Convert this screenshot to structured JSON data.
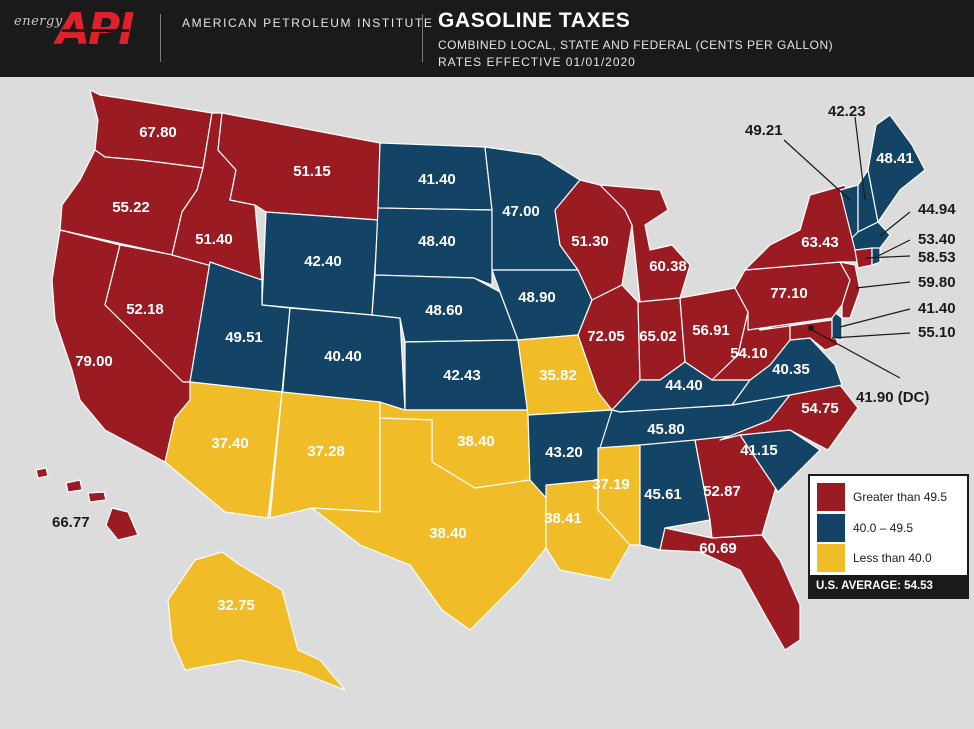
{
  "header": {
    "logo_prefix": "energy",
    "logo_mark": "API",
    "organization": "AMERICAN PETROLEUM INSTITUTE",
    "title": "GASOLINE TAXES",
    "subtitle": "COMBINED LOCAL, STATE AND FEDERAL (CENTS PER GALLON)",
    "effective": "RATES EFFECTIVE 01/01/2020"
  },
  "colors": {
    "high": "#9b1b22",
    "mid": "#134466",
    "low": "#f0bc27",
    "background": "#dcdcdc",
    "header": "#1b1a1a"
  },
  "states": {
    "WA": "67.80",
    "OR": "55.22",
    "CA": "79.00",
    "NV": "52.18",
    "ID": "51.40",
    "MT": "51.15",
    "WY": "42.40",
    "UT": "49.51",
    "AZ": "37.40",
    "CO": "40.40",
    "NM": "37.28",
    "ND": "41.40",
    "SD": "48.40",
    "NE": "48.60",
    "KS": "42.43",
    "OK": "38.40",
    "TX": "38.40",
    "MN": "47.00",
    "IA": "48.90",
    "MO": "35.82",
    "AR": "43.20",
    "LA": "38.41",
    "WI": "51.30",
    "IL": "72.05",
    "MI": "60.38",
    "IN": "65.02",
    "OH": "56.91",
    "KY": "44.40",
    "TN": "45.80",
    "MS": "37.19",
    "AL": "45.61",
    "GA": "52.87",
    "FL": "60.69",
    "SC": "41.15",
    "NC": "54.75",
    "VA": "40.35",
    "WV": "54.10",
    "PA": "77.10",
    "NY": "63.43",
    "ME": "48.41",
    "AK": "32.75",
    "HI": "66.77"
  },
  "callouts": {
    "VT": "49.21",
    "NH": "42.23",
    "MA": "44.94",
    "RI": "53.40",
    "CT": "58.53",
    "NJ": "59.80",
    "DE": "41.40",
    "MD": "55.10",
    "DC": "41.90 (DC)"
  },
  "legend": {
    "items": [
      {
        "label": "Greater than 49.5",
        "color": "#9b1b22"
      },
      {
        "label": "40.0 – 49.5",
        "color": "#134466"
      },
      {
        "label": "Less than 40.0",
        "color": "#f0bc27"
      }
    ],
    "average": "U.S. AVERAGE: 54.53"
  }
}
